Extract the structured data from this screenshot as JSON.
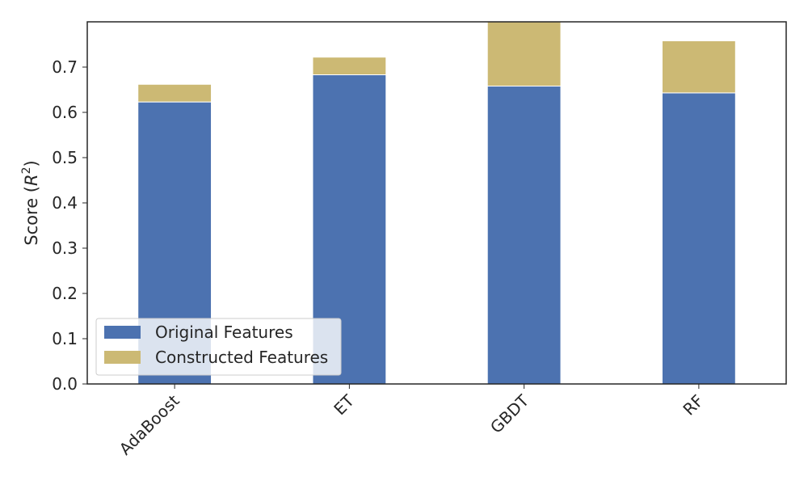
{
  "chart_data": {
    "type": "bar",
    "stacked": true,
    "categories": [
      "AdaBoost",
      "ET",
      "GBDT",
      "RF"
    ],
    "series": [
      {
        "name": "Original Features",
        "values": [
          0.623,
          0.683,
          0.658,
          0.643
        ],
        "color": "#4c72b0"
      },
      {
        "name": "Constructed Features",
        "values": [
          0.039,
          0.039,
          0.142,
          0.115
        ],
        "color": "#ccb974"
      }
    ],
    "ylabel": "Score",
    "ylabel_symbol": "R",
    "ylabel_exponent": "2",
    "ylim": [
      0,
      0.8
    ],
    "yticks": [
      "0.0",
      "0.1",
      "0.2",
      "0.3",
      "0.4",
      "0.5",
      "0.6",
      "0.7"
    ],
    "grid": false,
    "legend_position": "lower-left"
  }
}
